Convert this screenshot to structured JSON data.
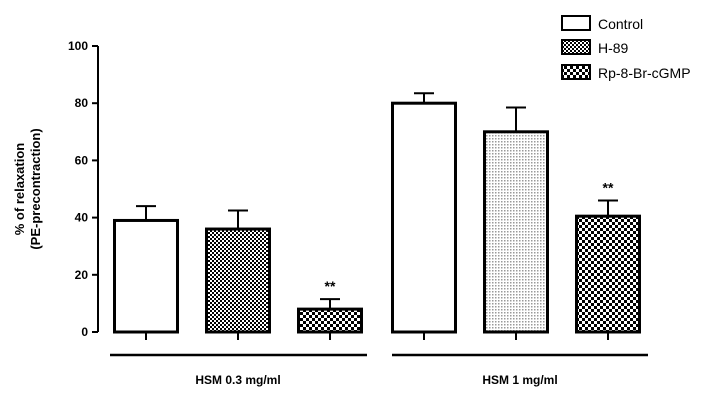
{
  "chart_data": {
    "type": "bar",
    "ylabel_lines": [
      "% of relaxation",
      "(PE-precontraction)"
    ],
    "ylim": [
      0,
      100
    ],
    "yticks": [
      0,
      20,
      40,
      60,
      80,
      100
    ],
    "groups": [
      "HSM 0.3 mg/ml",
      "HSM 1 mg/ml"
    ],
    "series": [
      {
        "name": "Control",
        "pattern": "white",
        "values": [
          39,
          80
        ],
        "errors": [
          5,
          3.5
        ],
        "significance": [
          "",
          ""
        ]
      },
      {
        "name": "H-89",
        "pattern": "dense-check",
        "values": [
          36,
          70
        ],
        "errors": [
          6.5,
          8.5
        ],
        "significance": [
          "",
          ""
        ]
      },
      {
        "name": "Rp-8-Br-cGMP",
        "pattern": "coarse-check",
        "values": [
          8,
          40.5
        ],
        "errors": [
          3.5,
          5.5
        ],
        "significance": [
          "**",
          "**"
        ]
      }
    ],
    "grid": false,
    "legend_position": "top-right",
    "colors": {
      "stroke": "#000000",
      "fill": "#ffffff",
      "pattern_dark": "#000000",
      "pattern_light": "#9a9a9a"
    }
  }
}
